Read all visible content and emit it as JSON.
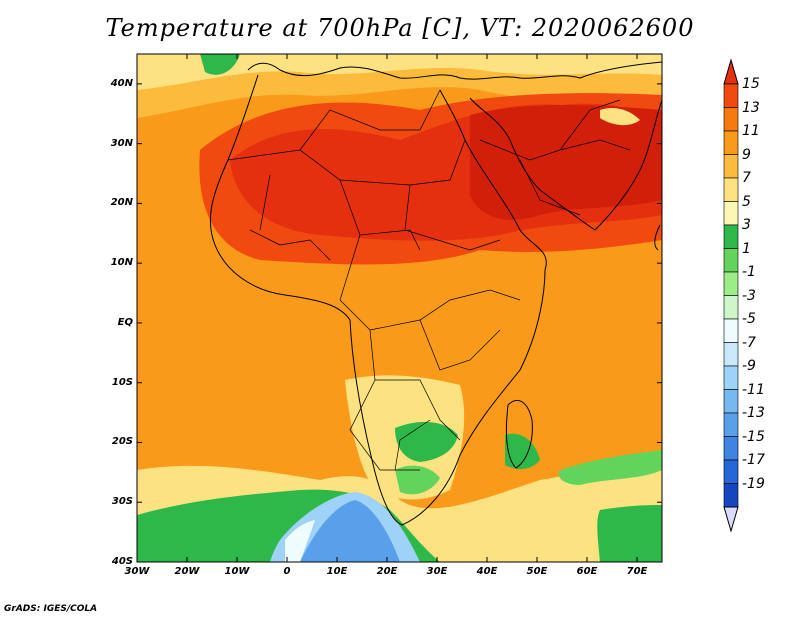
{
  "title": "Temperature at 700hPa [C], VT: 2020062600",
  "credit": "GrADS: IGES/COLA",
  "map": {
    "lon_range": [
      -30,
      75
    ],
    "lat_range": [
      -40,
      45
    ],
    "x_ticks": [
      "30W",
      "20W",
      "10W",
      "0",
      "10E",
      "20E",
      "30E",
      "40E",
      "50E",
      "60E",
      "70E"
    ],
    "y_ticks": [
      "40N",
      "30N",
      "20N",
      "10N",
      "EQ",
      "10S",
      "20S",
      "30S",
      "40S"
    ]
  },
  "colorbar": {
    "labels": [
      "15",
      "13",
      "11",
      "9",
      "7",
      "5",
      "3",
      "1",
      "-1",
      "-3",
      "-5",
      "-7",
      "-9",
      "-11",
      "-13",
      "-15",
      "-17",
      "-19"
    ],
    "colors": [
      "#e53010",
      "#f04a10",
      "#f77a10",
      "#fa9a1a",
      "#fbbb3c",
      "#fde282",
      "#fdf7b5",
      "#2fb84a",
      "#62d45b",
      "#9cec8a",
      "#cef6cb",
      "#eefbff",
      "#c9e9fb",
      "#9ed2f7",
      "#77b8f1",
      "#5a9fea",
      "#3f84e2",
      "#2566d6",
      "#1446c0",
      "#0a1c7c"
    ]
  }
}
